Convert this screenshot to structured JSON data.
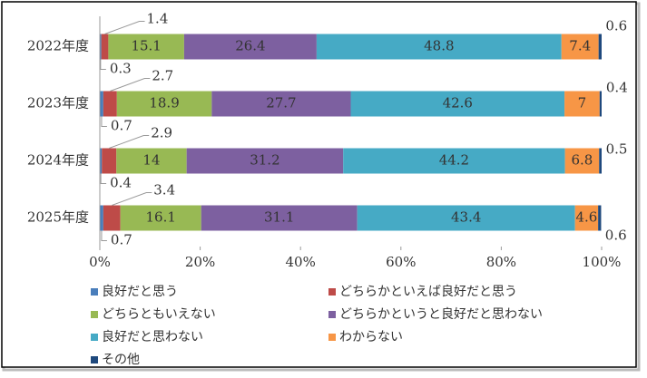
{
  "chart_data": {
    "type": "stacked-bar-horizontal",
    "categories": [
      "2022年度",
      "2023年度",
      "2024年度",
      "2025年度"
    ],
    "series": [
      {
        "name": "良好だと思う",
        "color": "#4a7ebb",
        "values": [
          0.3,
          0.7,
          0.4,
          0.7
        ]
      },
      {
        "name": "どちらかといえば良好だと思う",
        "color": "#be4b48",
        "values": [
          1.4,
          2.7,
          2.9,
          3.4
        ]
      },
      {
        "name": "どちらともいえない",
        "color": "#98b954",
        "values": [
          15.1,
          18.9,
          14,
          16.1
        ]
      },
      {
        "name": "どちらかというと良好だと思わない",
        "color": "#7d60a0",
        "values": [
          26.4,
          27.7,
          31.2,
          31.1
        ]
      },
      {
        "name": "良好だと思わない",
        "color": "#46aac5",
        "values": [
          48.8,
          42.6,
          44.2,
          43.4
        ]
      },
      {
        "name": "わからない",
        "color": "#f79646",
        "values": [
          7.4,
          7,
          6.8,
          4.6
        ]
      },
      {
        "name": "その他",
        "color": "#1f497d",
        "values": [
          0.6,
          0.4,
          0.5,
          0.6
        ]
      }
    ],
    "xlim": [
      0,
      100
    ],
    "xticks": [
      {
        "value": 0,
        "label": "0%"
      },
      {
        "value": 20,
        "label": "20%"
      },
      {
        "value": 40,
        "label": "40%"
      },
      {
        "value": 60,
        "label": "60%"
      },
      {
        "value": 80,
        "label": "80%"
      },
      {
        "value": 100,
        "label": "100%"
      }
    ],
    "legend": "bottom"
  }
}
